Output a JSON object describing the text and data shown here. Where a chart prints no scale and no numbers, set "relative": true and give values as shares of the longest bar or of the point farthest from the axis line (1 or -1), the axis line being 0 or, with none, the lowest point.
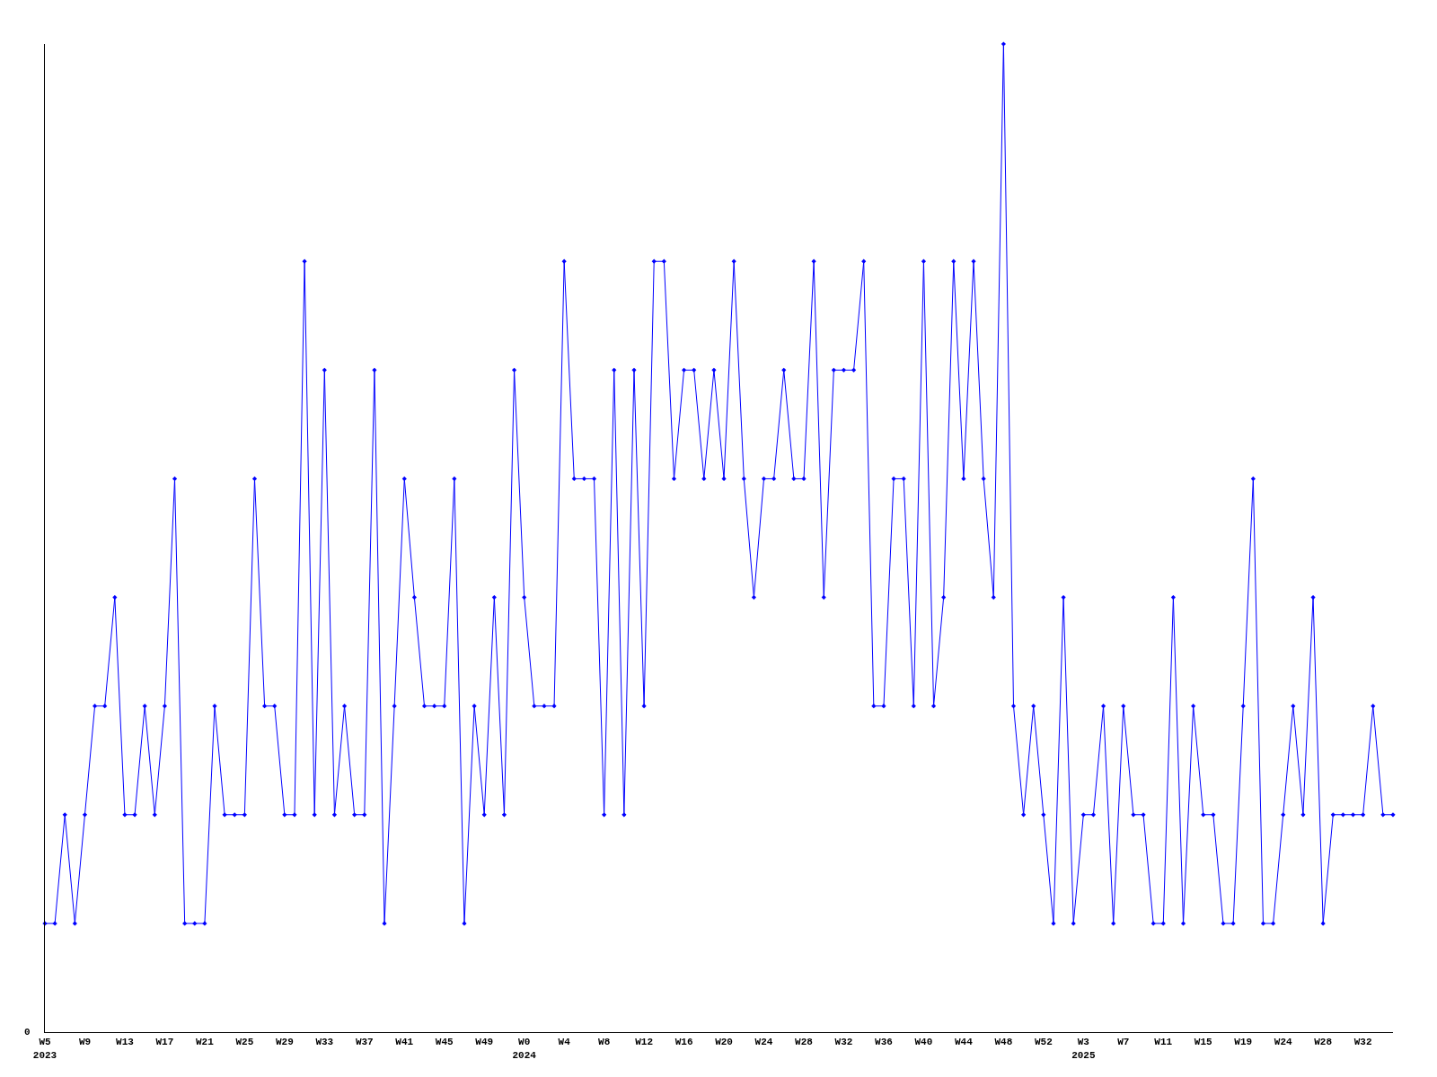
{
  "chart_data": {
    "type": "line",
    "relative": true,
    "color": "#0000ff",
    "marker": "diamond",
    "line_style": "solid",
    "annotations": [
      "0"
    ],
    "categories": [
      "W5\n2023",
      null,
      null,
      null,
      "W9",
      null,
      null,
      null,
      "W13",
      null,
      null,
      null,
      "W17",
      null,
      null,
      null,
      "W21",
      null,
      null,
      null,
      "W25",
      null,
      null,
      null,
      "W29",
      null,
      null,
      null,
      "W33",
      null,
      null,
      null,
      "W37",
      null,
      null,
      null,
      "W41",
      null,
      null,
      null,
      "W45",
      null,
      null,
      null,
      "W49",
      null,
      null,
      null,
      "W0\n2024",
      null,
      null,
      null,
      "W4",
      null,
      null,
      null,
      "W8",
      null,
      null,
      null,
      "W12",
      null,
      null,
      null,
      "W16",
      null,
      null,
      null,
      "W20",
      null,
      null,
      null,
      "W24",
      null,
      null,
      null,
      "W28",
      null,
      null,
      null,
      "W32",
      null,
      null,
      null,
      "W36",
      null,
      null,
      null,
      "W40",
      null,
      null,
      null,
      "W44",
      null,
      null,
      null,
      "W48",
      null,
      null,
      null,
      "W52",
      null,
      null,
      null,
      "W3\n2025",
      null,
      null,
      null,
      "W7",
      null,
      null,
      null,
      "W11",
      null,
      null,
      null,
      "W15",
      null,
      null,
      null,
      "W19",
      null,
      null,
      null,
      "W24",
      null,
      null,
      null,
      "W28",
      null,
      null,
      null,
      "W32",
      null,
      null,
      null
    ],
    "values": [
      0.11,
      0.11,
      0.22,
      0.11,
      0.22,
      0.33,
      0.33,
      0.44,
      0.22,
      0.22,
      0.33,
      0.22,
      0.33,
      0.56,
      0.11,
      0.11,
      0.11,
      0.33,
      0.22,
      0.22,
      0.22,
      0.56,
      0.33,
      0.33,
      0.22,
      0.22,
      0.78,
      0.22,
      0.67,
      0.22,
      0.33,
      0.22,
      0.22,
      0.67,
      0.11,
      0.33,
      0.56,
      0.44,
      0.33,
      0.33,
      0.33,
      0.56,
      0.11,
      0.33,
      0.22,
      0.44,
      0.22,
      0.67,
      0.44,
      0.33,
      0.33,
      0.33,
      0.78,
      0.56,
      0.56,
      0.56,
      0.22,
      0.67,
      0.22,
      0.67,
      0.33,
      0.78,
      0.78,
      0.56,
      0.67,
      0.67,
      0.56,
      0.67,
      0.56,
      0.78,
      0.56,
      0.44,
      0.56,
      0.56,
      0.67,
      0.56,
      0.56,
      0.78,
      0.44,
      0.67,
      0.67,
      0.67,
      0.78,
      0.33,
      0.33,
      0.56,
      0.56,
      0.33,
      0.78,
      0.33,
      0.44,
      0.78,
      0.56,
      0.78,
      0.56,
      0.44,
      1,
      0.33,
      0.22,
      0.33,
      0.22,
      0.11,
      0.44,
      0.11,
      0.22,
      0.22,
      0.33,
      0.11,
      0.33,
      0.22,
      0.22,
      0.11,
      0.11,
      0.44,
      0.11,
      0.33,
      0.22,
      0.22,
      0.11,
      0.11,
      0.33,
      0.56,
      0.11,
      0.11,
      0.22,
      0.33,
      0.22,
      0.44,
      0.11,
      0.22,
      0.22,
      0.22,
      0.22,
      0.33,
      0.22,
      0.22
    ]
  }
}
